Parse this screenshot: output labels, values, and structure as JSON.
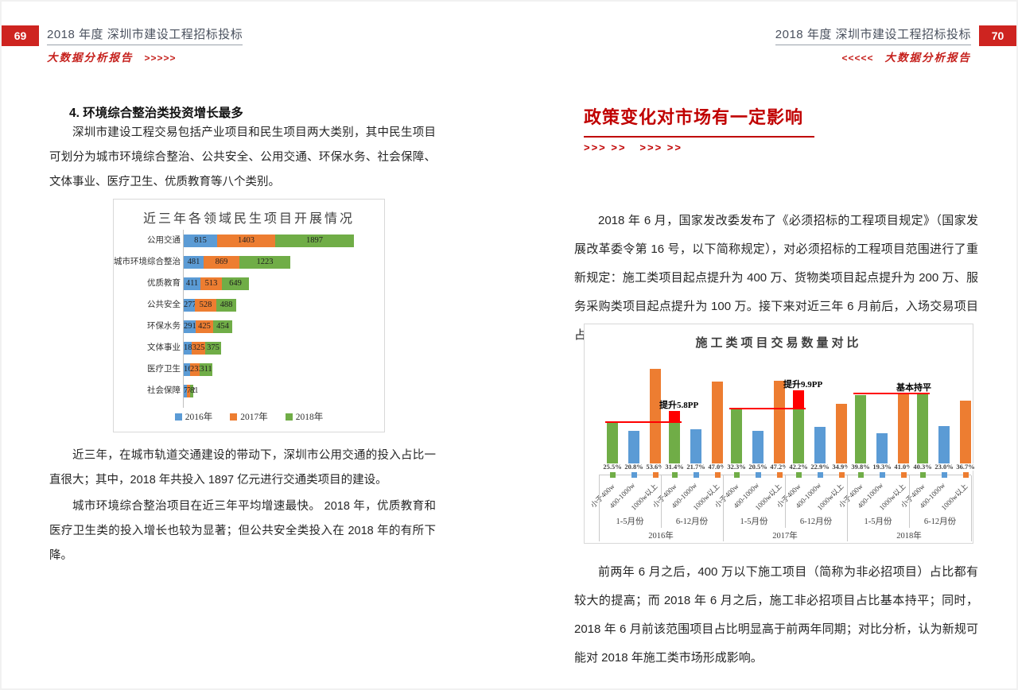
{
  "accent_colors": {
    "report_red": "#ce2420",
    "heading_red": "#c00000",
    "annotation_red": "#FF0000"
  },
  "left_page": {
    "page_number": "69",
    "header_title": "2018 年度 深圳市建设工程招标投标",
    "header_subtitle": "大数据分析报告",
    "header_arrows": ">>>>>",
    "section_heading": "4. 环境综合整治类投资增长最多",
    "paragraph1": "深圳市建设工程交易包括产业项目和民生项目两大类别，其中民生项目可划分为城市环境综合整治、公共安全、公用交通、环保水务、社会保障、文体事业、医疗卫生、优质教育等八个类别。",
    "paragraph2": "近三年，在城市轨道交通建设的带动下，深圳市公用交通的投入占比一直很大；其中，2018 年共投入 1897 亿元进行交通类项目的建设。",
    "paragraph3": "城市环境综合整治项目在近三年平均增速最快。 2018 年，优质教育和医疗卫生类的投入增长也较为显著；但公共安全类投入在 2018 年的有所下降。"
  },
  "right_page": {
    "page_number": "70",
    "header_title": "2018 年度 深圳市建设工程招标投标",
    "header_subtitle": "大数据分析报告",
    "header_arrows": "<<<<<",
    "section_heading": "政策变化对市场有一定影响",
    "heading_arrows": ">>> >>   >>> >>",
    "paragraph1": "2018 年 6 月，国家发改委发布了《必须招标的工程项目规定》（国家发展改革委令第 16 号，以下简称规定），对必须招标的工程项目范围进行了重新规定：施工类项目起点提升为 400 万、货物类项目起点提升为 200 万、服务采购类项目起点提升为 100 万。接下来对近三年 6 月前后，入场交易项目占比情况进行对比分析，研究新政发布对市场是否产生影响。",
    "paragraph2": "前两年 6 月之后，400 万以下施工项目（简称为非必招项目）占比都有较大的提高；而 2018 年 6 月之后，施工非必招项目占比基本持平；同时，2018 年 6 月前该范围项目占比明显高于前两年同期；对比分析，认为新规可能对 2018 年施工类市场形成影响。"
  },
  "chart_data": [
    {
      "type": "bar",
      "orientation": "horizontal",
      "stacked": true,
      "title": "近三年各领域民生项目开展情况",
      "categories": [
        "公用交通",
        "城市环境综合整治",
        "优质教育",
        "公共安全",
        "环保水务",
        "文体事业",
        "医疗卫生",
        "社会保障"
      ],
      "series": [
        {
          "name": "2016年",
          "color": "#5B9BD5",
          "values": [
            815,
            481,
            411,
            277,
            291,
            183,
            162,
            76
          ]
        },
        {
          "name": "2017年",
          "color": "#ED7D31",
          "values": [
            1403,
            869,
            513,
            528,
            425,
            325,
            233,
            72
          ]
        },
        {
          "name": "2018年",
          "color": "#70AD47",
          "values": [
            1897,
            1223,
            649,
            488,
            454,
            375,
            311,
            81
          ]
        }
      ],
      "legend_position": "bottom",
      "grid": false
    },
    {
      "type": "bar",
      "title": "施工类项目交易数量对比",
      "ylabel": "",
      "ylim": [
        0,
        60
      ],
      "grid": false,
      "bar_categories": [
        "小于400w",
        "400-1000w",
        "1000w以上"
      ],
      "bar_colors": [
        "#70AD47",
        "#5B9BD5",
        "#ED7D31"
      ],
      "group_labels_level2": [
        "2016年",
        "2017年",
        "2018年"
      ],
      "groups": [
        {
          "year": "2016年",
          "period": "1-5月份",
          "values": [
            25.5,
            20.8,
            53.6
          ]
        },
        {
          "year": "2016年",
          "period": "6-12月份",
          "values": [
            31.4,
            21.7,
            47.0
          ]
        },
        {
          "year": "2017年",
          "period": "1-5月份",
          "values": [
            32.3,
            20.5,
            47.2
          ]
        },
        {
          "year": "2017年",
          "period": "6-12月份",
          "values": [
            42.2,
            22.9,
            34.9
          ]
        },
        {
          "year": "2018年",
          "period": "1-5月份",
          "values": [
            39.8,
            19.3,
            41.0
          ]
        },
        {
          "year": "2018年",
          "period": "6-12月份",
          "values": [
            40.3,
            23.0,
            36.7
          ]
        }
      ],
      "annotation_color": "#FF0000",
      "annotations": [
        {
          "label": "提升5.8PP",
          "from_group": 0,
          "to_group": 1,
          "bar_index": 0,
          "show_delta": true
        },
        {
          "label": "提升9.9PP",
          "from_group": 2,
          "to_group": 3,
          "bar_index": 0,
          "show_delta": true
        },
        {
          "label": "基本持平",
          "from_group": 4,
          "to_group": 5,
          "bar_index": 0,
          "show_delta": false
        }
      ]
    }
  ]
}
